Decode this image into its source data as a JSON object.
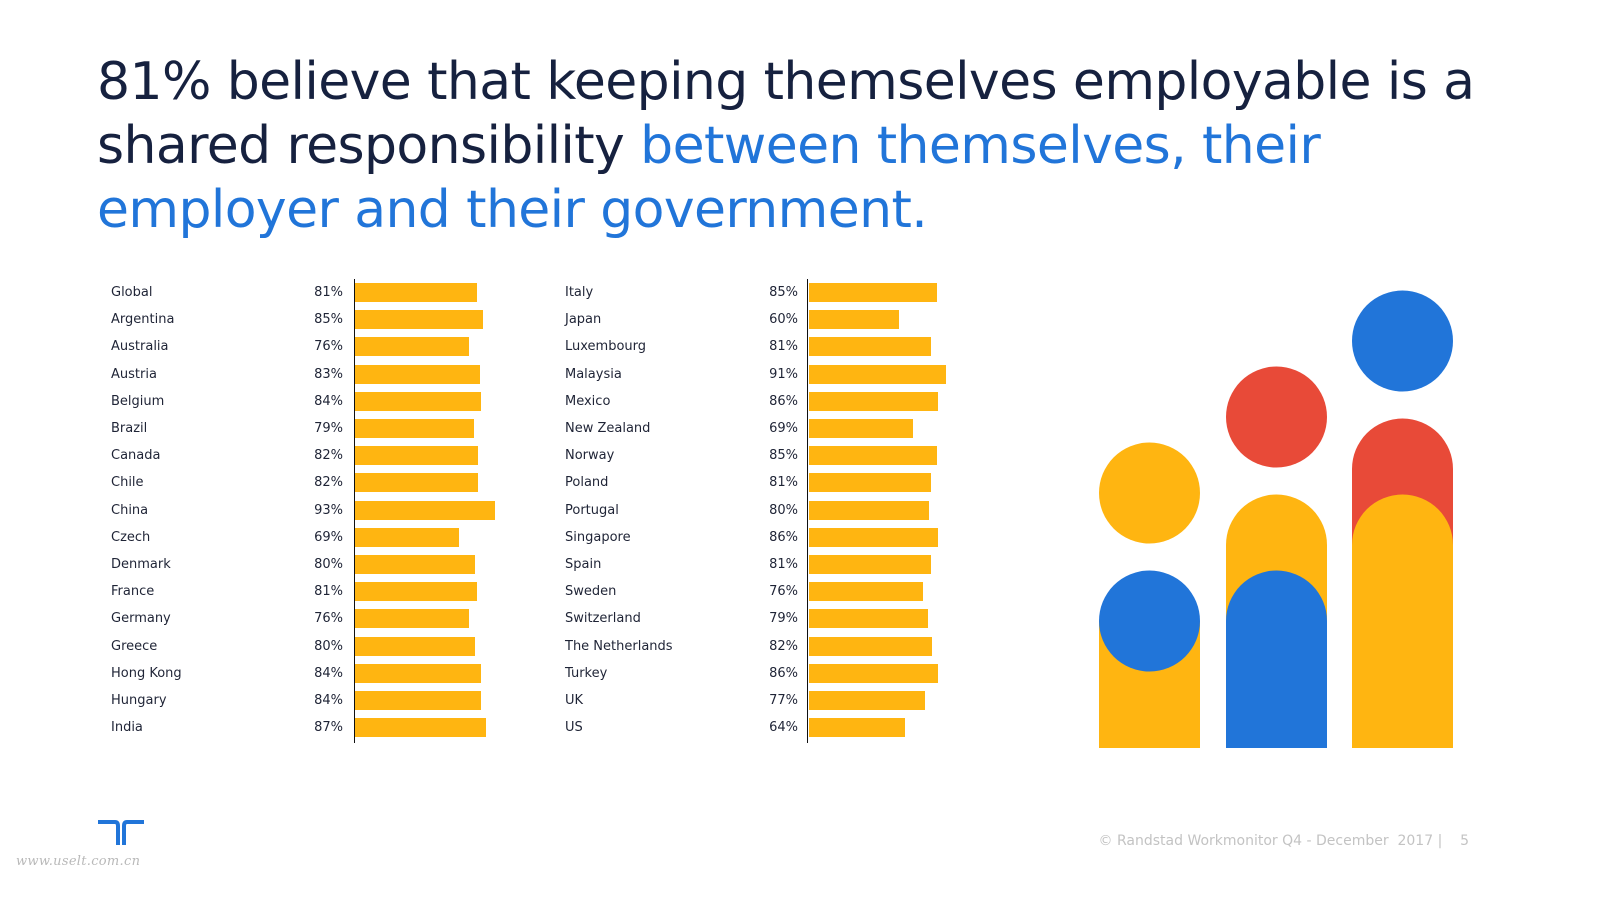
{
  "slide": {
    "title_dark": "81% believe that keeping themselves employable is a shared responsibility ",
    "title_accent": "between themselves, their employer and their government.",
    "footer_text": "© Randstad Workmonitor Q4 - December  2017 |    5",
    "page_number": "5",
    "watermark": "www.uselt.com.cn",
    "logo": "randstad-logo-icon"
  },
  "colors": {
    "title_dark": "#16213f",
    "accent_blue": "#2175d9",
    "bar_yellow": "#ffb511",
    "red": "#e84a38",
    "footer_gray": "#c3c3c3"
  },
  "chart_data": {
    "type": "bar",
    "orientation": "horizontal",
    "title": "",
    "xlabel": "",
    "ylabel": "",
    "xlim": [
      0,
      100
    ],
    "grid": false,
    "value_format": "percent",
    "panels": [
      {
        "name": "left",
        "categories": [
          "Global",
          "Argentina",
          "Australia",
          "Austria",
          "Belgium",
          "Brazil",
          "Canada",
          "Chile",
          "China",
          "Czech",
          "Denmark",
          "France",
          "Germany",
          "Greece",
          "Hong Kong",
          "Hungary",
          "India"
        ],
        "values": [
          81,
          85,
          76,
          83,
          84,
          79,
          82,
          82,
          93,
          69,
          80,
          81,
          76,
          80,
          84,
          84,
          87
        ],
        "labels": [
          "81%",
          "85%",
          "76%",
          "83%",
          "84%",
          "79%",
          "82%",
          "82%",
          "93%",
          "69%",
          "80%",
          "81%",
          "76%",
          "80%",
          "84%",
          "84%",
          "87%"
        ]
      },
      {
        "name": "right",
        "categories": [
          "Italy",
          "Japan",
          "Luxembourg",
          "Malaysia",
          "Mexico",
          "New Zealand",
          "Norway",
          "Poland",
          "Portugal",
          "Singapore",
          "Spain",
          "Sweden",
          "Switzerland",
          "The Netherlands",
          "Turkey",
          "UK",
          "US"
        ],
        "values": [
          85,
          60,
          81,
          91,
          86,
          69,
          85,
          81,
          80,
          86,
          81,
          76,
          79,
          82,
          86,
          77,
          64
        ],
        "labels": [
          "85%",
          "60%",
          "81%",
          "91%",
          "86%",
          "69%",
          "85%",
          "81%",
          "80%",
          "86%",
          "81%",
          "76%",
          "79%",
          "82%",
          "86%",
          "77%",
          "64%"
        ]
      }
    ]
  }
}
